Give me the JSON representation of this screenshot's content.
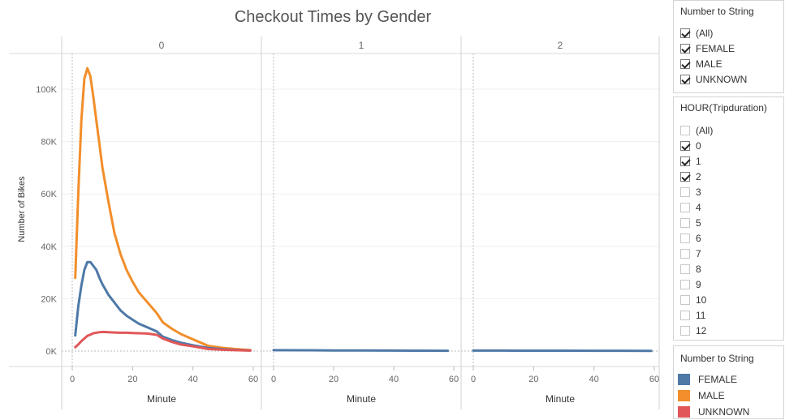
{
  "chart_data": {
    "type": "line",
    "title": "Checkout Times by Gender",
    "ylabel": "Number of Bikes",
    "ylim": [
      0,
      110000
    ],
    "y_ticks": [
      0,
      20000,
      40000,
      60000,
      80000,
      100000
    ],
    "y_tick_labels": [
      "0K",
      "20K",
      "40K",
      "60K",
      "80K",
      "100K"
    ],
    "xlim": [
      -3,
      63
    ],
    "x_ticks": [
      0,
      20,
      40,
      60
    ],
    "x_tick_labels": [
      "0",
      "20",
      "40",
      "60"
    ],
    "xlabel": "Minute",
    "grid": true,
    "legend_position": "right",
    "panels": [
      {
        "label": "0",
        "series": [
          {
            "name": "MALE",
            "color": "#f28e2b",
            "x": [
              1,
              2,
              3,
              4,
              5,
              6,
              7,
              8,
              9,
              10,
              12,
              14,
              16,
              18,
              20,
              22,
              25,
              28,
              30,
              33,
              36,
              40,
              45,
              50,
              55,
              59
            ],
            "y": [
              28000,
              60000,
              88000,
              104000,
              108000,
              105000,
              97000,
              88000,
              79000,
              70000,
              57000,
              45000,
              37000,
              31000,
              26500,
              22500,
              18500,
              14500,
              11000,
              8500,
              6500,
              4500,
              2000,
              1200,
              700,
              400
            ]
          },
          {
            "name": "FEMALE",
            "color": "#4e79a7",
            "x": [
              1,
              2,
              3,
              4,
              5,
              6,
              7,
              8,
              9,
              10,
              12,
              14,
              16,
              18,
              20,
              22,
              25,
              28,
              30,
              33,
              36,
              40,
              45,
              50,
              55,
              59
            ],
            "y": [
              6000,
              17000,
              25000,
              31000,
              34000,
              34000,
              32500,
              31000,
              28000,
              25500,
              21500,
              18500,
              15500,
              13500,
              12000,
              10500,
              9000,
              7500,
              5500,
              4200,
              3200,
              2200,
              1200,
              700,
              400,
              250
            ]
          },
          {
            "name": "UNKNOWN",
            "color": "#e15759",
            "x": [
              1,
              2,
              3,
              4,
              5,
              6,
              7,
              8,
              9,
              10,
              12,
              14,
              16,
              18,
              20,
              22,
              25,
              28,
              30,
              33,
              36,
              40,
              45,
              50,
              55,
              59
            ],
            "y": [
              1500,
              2500,
              3800,
              4800,
              5800,
              6300,
              6800,
              7000,
              7200,
              7300,
              7200,
              7100,
              7000,
              7000,
              6900,
              6800,
              6700,
              6200,
              4800,
              3500,
              2500,
              1800,
              800,
              500,
              300,
              200
            ]
          }
        ]
      },
      {
        "label": "1",
        "series": [
          {
            "name": "FEMALE",
            "color": "#4e79a7",
            "x": [
              0,
              10,
              20,
              30,
              40,
              50,
              58
            ],
            "y": [
              350,
              300,
              250,
              220,
              180,
              150,
              120
            ]
          }
        ]
      },
      {
        "label": "2",
        "series": [
          {
            "name": "FEMALE",
            "color": "#4e79a7",
            "x": [
              0,
              10,
              20,
              30,
              40,
              50,
              59
            ],
            "y": [
              200,
              180,
              160,
              150,
              130,
              120,
              100
            ]
          }
        ]
      }
    ]
  },
  "filters": {
    "gender": {
      "title": "Number to String",
      "items": [
        {
          "label": "(All)",
          "checked": true
        },
        {
          "label": "FEMALE",
          "checked": true
        },
        {
          "label": "MALE",
          "checked": true
        },
        {
          "label": "UNKNOWN",
          "checked": true
        }
      ]
    },
    "hour": {
      "title": "HOUR(Tripduration)",
      "items": [
        {
          "label": "(All)",
          "checked": false
        },
        {
          "label": "0",
          "checked": true
        },
        {
          "label": "1",
          "checked": true
        },
        {
          "label": "2",
          "checked": true
        },
        {
          "label": "3",
          "checked": false
        },
        {
          "label": "4",
          "checked": false
        },
        {
          "label": "5",
          "checked": false
        },
        {
          "label": "6",
          "checked": false
        },
        {
          "label": "7",
          "checked": false
        },
        {
          "label": "8",
          "checked": false
        },
        {
          "label": "9",
          "checked": false
        },
        {
          "label": "10",
          "checked": false
        },
        {
          "label": "11",
          "checked": false
        },
        {
          "label": "12",
          "checked": false
        }
      ]
    }
  },
  "legend": {
    "title": "Number to String",
    "items": [
      {
        "label": "FEMALE",
        "color": "#4e79a7"
      },
      {
        "label": "MALE",
        "color": "#f28e2b"
      },
      {
        "label": "UNKNOWN",
        "color": "#e15759"
      }
    ]
  }
}
